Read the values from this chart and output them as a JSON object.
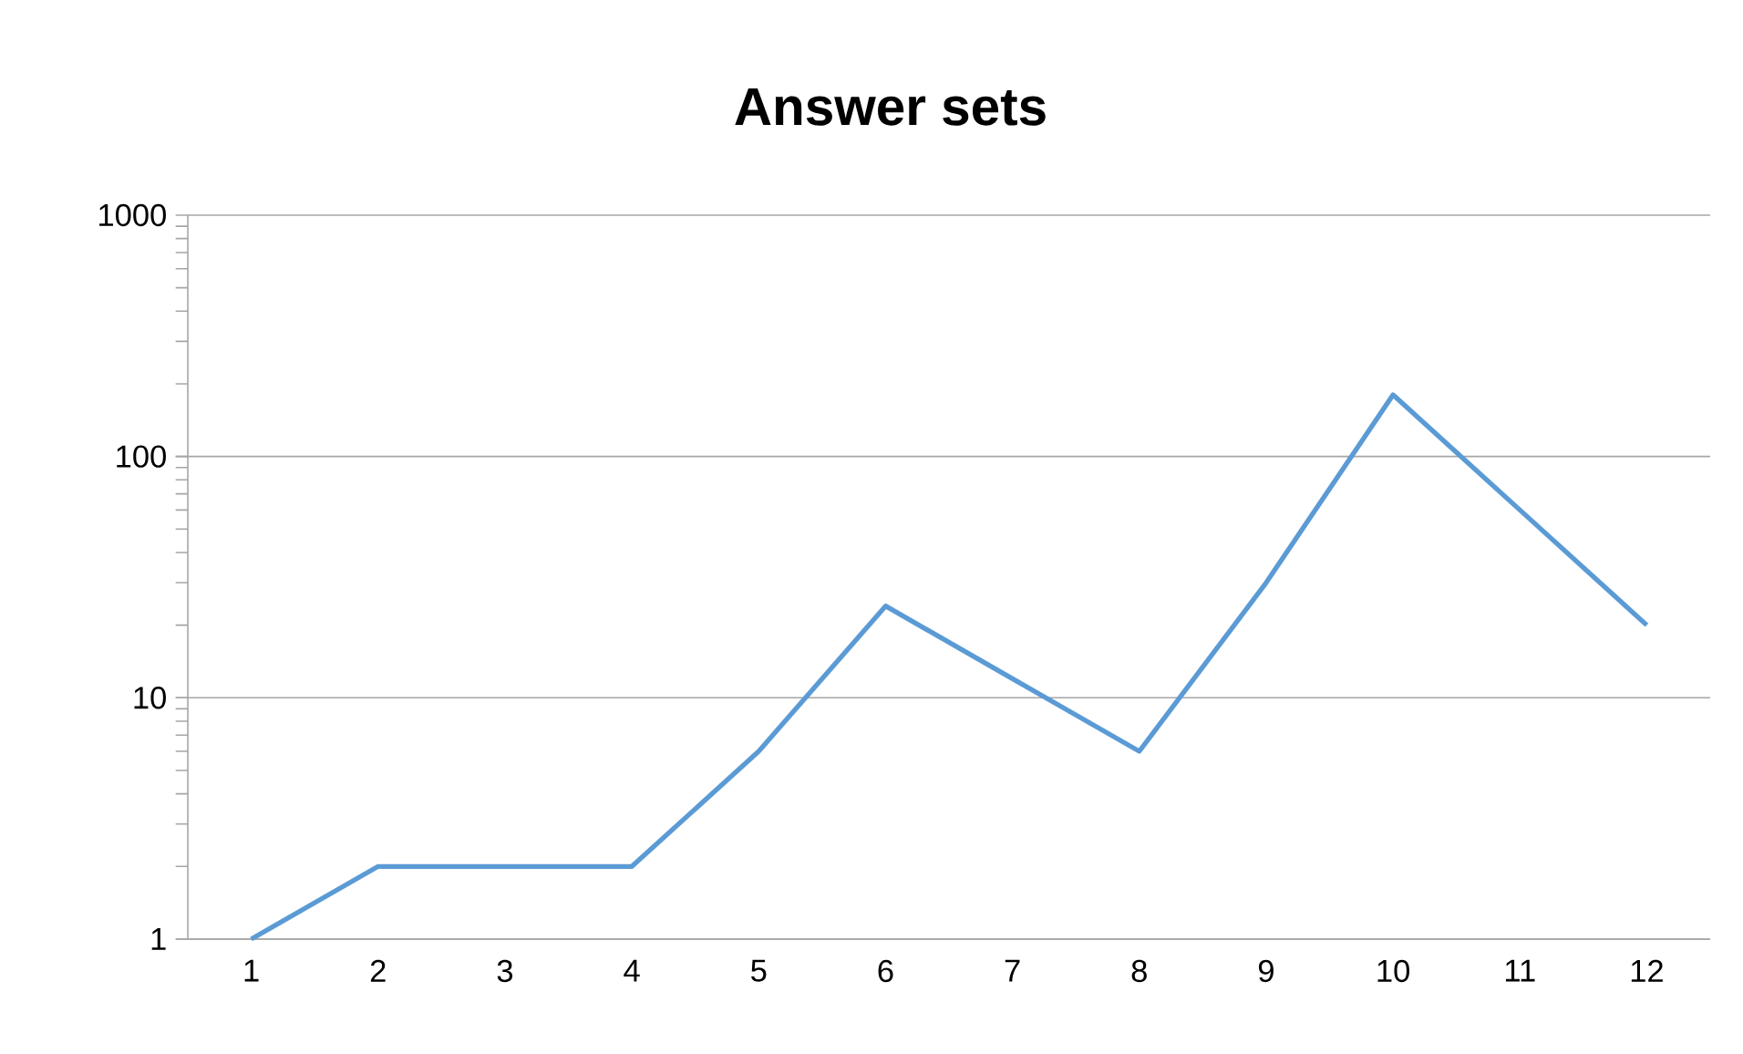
{
  "chart_data": {
    "type": "line",
    "title": "Answer sets",
    "categories": [
      "1",
      "2",
      "3",
      "4",
      "5",
      "6",
      "7",
      "8",
      "9",
      "10",
      "11",
      "12"
    ],
    "series": [
      {
        "color": "#5b9bd5",
        "values": [
          1,
          2,
          2,
          2,
          6,
          24,
          12,
          6,
          30,
          180,
          60,
          20
        ]
      }
    ],
    "log": "y",
    "ylim": [
      1,
      1000
    ],
    "yticks": [
      1,
      10,
      100,
      1000
    ],
    "grid": "y",
    "legend": false,
    "marker": "none",
    "line_style": "solid"
  }
}
